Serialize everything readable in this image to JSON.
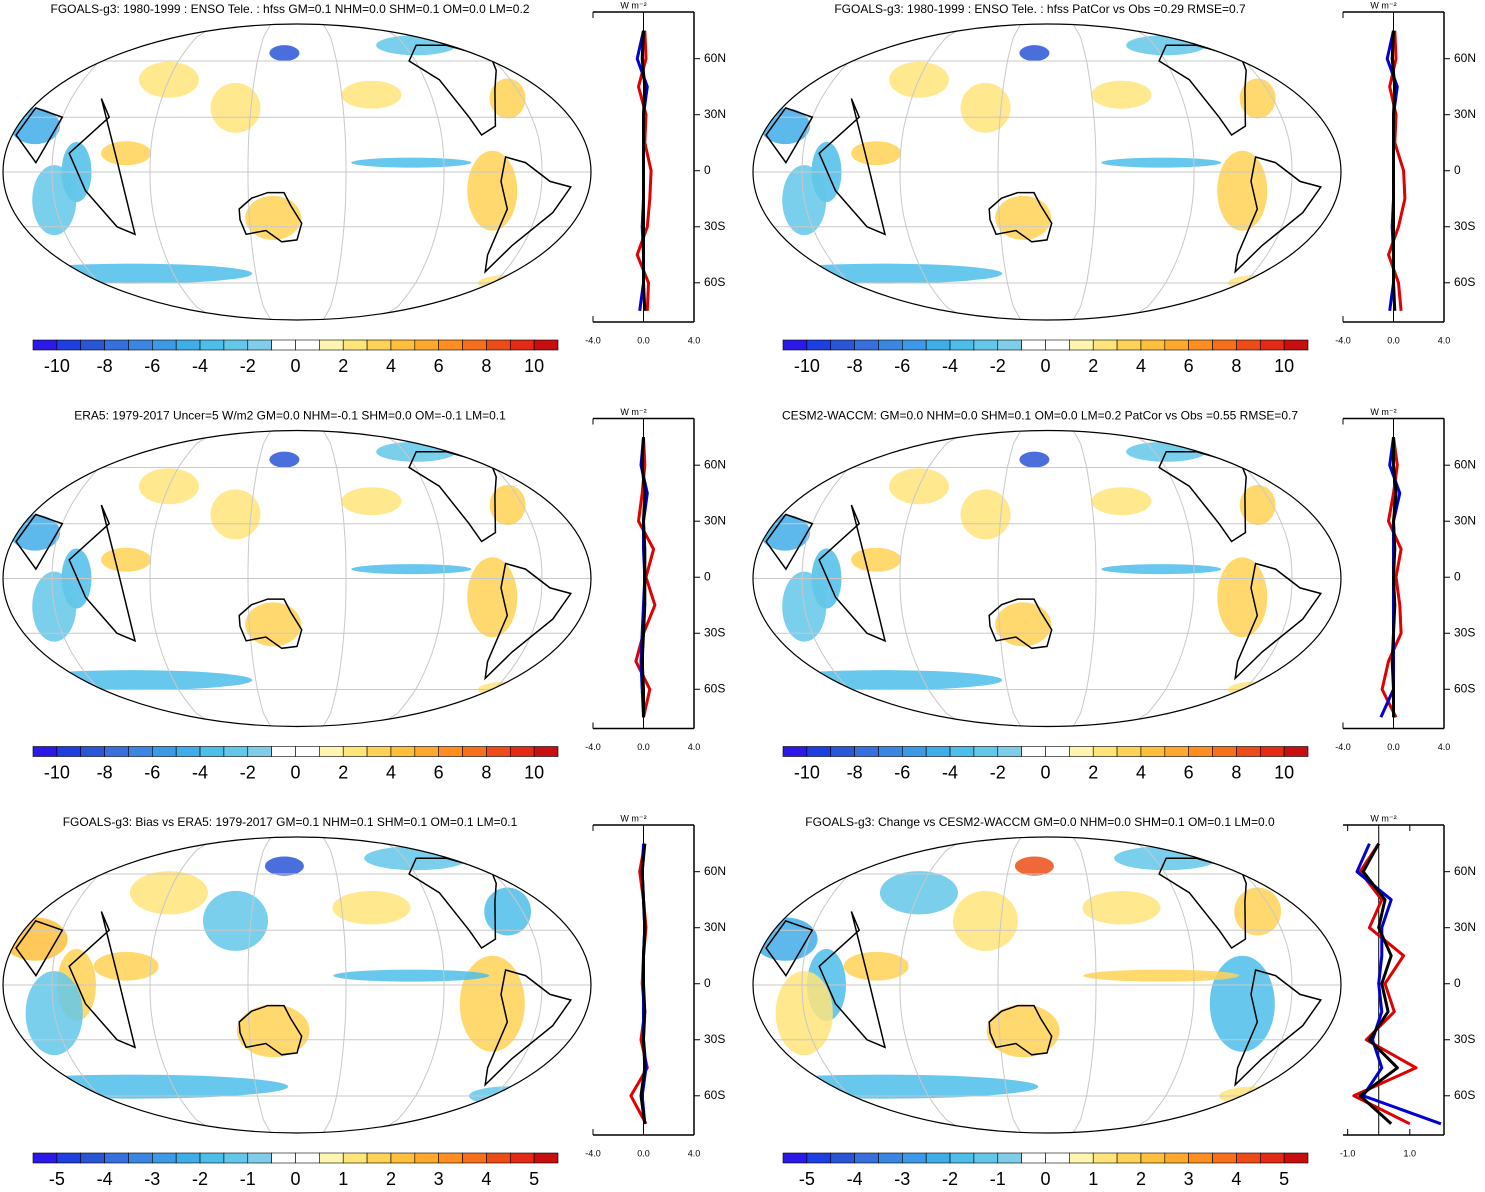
{
  "panels": [
    {
      "title": "FGOALS-g3: 1980-1999 : ENSO Tele. : hfss GM=0.1 NHM=0.0 SHM=0.1 OM=0.0 LM=0.2",
      "colorbar": {
        "lim": [
          -11,
          11
        ],
        "ticks": [
          -10,
          -8,
          -6,
          -4,
          -2,
          0,
          2,
          4,
          6,
          8,
          10
        ]
      },
      "profile": {
        "unit": "W m⁻²",
        "xlim": [
          -4,
          4
        ],
        "xticks": [
          {
            "value": -4,
            "label": "-4.0"
          },
          {
            "value": 0,
            "label": "0.0"
          },
          {
            "value": 4,
            "label": "4.0"
          }
        ],
        "series": [
          {
            "color": "#e00000",
            "values": [
              0.3,
              0.4,
              -0.5,
              0.3,
              0.5,
              0.6,
              0.1,
              0.2,
              -0.4,
              0.2,
              0.1
            ]
          },
          {
            "color": "#0000d0",
            "values": [
              -0.3,
              0.0,
              0.0,
              -0.1,
              0.0,
              0.0,
              0.0,
              0.0,
              0.3,
              -0.5,
              0.0
            ]
          },
          {
            "color": "#000000",
            "values": [
              0.1,
              0.0,
              0.0,
              0.0,
              0.0,
              0.0,
              0.0,
              0.0,
              0.1,
              -0.1,
              0.0
            ]
          }
        ]
      }
    },
    {
      "title": "FGOALS-g3: 1980-1999 : ENSO Tele. : hfss PatCor vs Obs =0.29 RMSE=0.7",
      "colorbar": {
        "lim": [
          -11,
          11
        ],
        "ticks": [
          -10,
          -8,
          -6,
          -4,
          -2,
          0,
          2,
          4,
          6,
          8,
          10
        ]
      },
      "profile": {
        "unit": "W m⁻²",
        "xlim": [
          -4,
          4
        ],
        "xticks": [
          {
            "value": -4,
            "label": "-4.0"
          },
          {
            "value": 0,
            "label": "0.0"
          },
          {
            "value": 4,
            "label": "4.0"
          }
        ],
        "series": [
          {
            "color": "#e00000",
            "values": [
              0.6,
              0.4,
              -0.4,
              0.4,
              0.9,
              0.8,
              0.1,
              0.2,
              -0.3,
              0.2,
              0.1
            ]
          },
          {
            "color": "#0000d0",
            "values": [
              -0.3,
              0.0,
              0.0,
              -0.1,
              0.0,
              0.0,
              0.0,
              0.0,
              0.3,
              -0.5,
              0.0
            ]
          },
          {
            "color": "#000000",
            "values": [
              0.1,
              0.0,
              0.0,
              0.0,
              0.0,
              0.0,
              0.0,
              0.0,
              0.1,
              -0.1,
              0.0
            ]
          }
        ]
      }
    },
    {
      "title": "ERA5: 1979-2017 Uncer=5 W/m2 GM=0.0 NHM=-0.1 SHM=0.0 OM=-0.1 LM=0.1",
      "colorbar": {
        "lim": [
          -11,
          11
        ],
        "ticks": [
          -10,
          -8,
          -6,
          -4,
          -2,
          0,
          2,
          4,
          6,
          8,
          10
        ]
      },
      "profile": {
        "unit": "W m⁻²",
        "xlim": [
          -4,
          4
        ],
        "xticks": [
          {
            "value": -4,
            "label": "-4.0"
          },
          {
            "value": 0,
            "label": "0.0"
          },
          {
            "value": 4,
            "label": "4.0"
          }
        ],
        "series": [
          {
            "color": "#e00000",
            "values": [
              0.0,
              0.5,
              -0.6,
              0.0,
              0.9,
              0.2,
              0.8,
              -0.4,
              -0.1,
              0.1,
              0.0
            ]
          },
          {
            "color": "#0000d0",
            "values": [
              0.0,
              -0.1,
              -0.2,
              -0.1,
              0.0,
              0.1,
              0.0,
              0.0,
              0.3,
              -0.2,
              0.0
            ]
          },
          {
            "color": "#000000",
            "values": [
              0.0,
              0.0,
              -0.1,
              0.0,
              0.1,
              0.1,
              0.1,
              0.0,
              0.1,
              -0.1,
              0.0
            ]
          }
        ]
      }
    },
    {
      "title": "CESM2-WACCM: GM=0.0 NHM=0.0 SHM=0.1 OM=0.0 LM=0.2 PatCor vs Obs =0.55 RMSE=0.7",
      "colorbar": {
        "lim": [
          -11,
          11
        ],
        "ticks": [
          -10,
          -8,
          -6,
          -4,
          -2,
          0,
          2,
          4,
          6,
          8,
          10
        ]
      },
      "profile": {
        "unit": "W m⁻²",
        "xlim": [
          -4,
          4
        ],
        "xticks": [
          {
            "value": -4,
            "label": "-4.0"
          },
          {
            "value": 0,
            "label": "0.0"
          },
          {
            "value": 4,
            "label": "4.0"
          }
        ],
        "series": [
          {
            "color": "#e00000",
            "values": [
              0.2,
              -0.9,
              -0.4,
              0.6,
              0.5,
              0.2,
              0.6,
              -0.4,
              0.0,
              0.3,
              0.0
            ]
          },
          {
            "color": "#0000d0",
            "values": [
              -1.0,
              0.0,
              0.0,
              0.0,
              0.0,
              0.0,
              0.0,
              0.0,
              0.5,
              -0.3,
              0.0
            ]
          },
          {
            "color": "#000000",
            "values": [
              0.0,
              0.0,
              -0.1,
              0.0,
              0.1,
              0.0,
              0.1,
              0.0,
              0.2,
              0.0,
              0.0
            ]
          }
        ]
      }
    },
    {
      "title": "FGOALS-g3: Bias vs ERA5: 1979-2017 GM=0.1 NHM=0.1 SHM=0.1 OM=0.1 LM=0.1",
      "colorbar": {
        "lim": [
          -5.5,
          5.5
        ],
        "ticks": [
          -5,
          -4,
          -3,
          -2,
          -1,
          0,
          1,
          2,
          3,
          4,
          5
        ]
      },
      "profile": {
        "unit": "W m⁻²",
        "xlim": [
          -4,
          4
        ],
        "xticks": [
          {
            "value": -4,
            "label": "-4.0"
          },
          {
            "value": 0,
            "label": "0.0"
          },
          {
            "value": 4,
            "label": "4.0"
          }
        ],
        "series": [
          {
            "color": "#e00000",
            "values": [
              0.2,
              -1.0,
              0.3,
              -0.2,
              0.1,
              -0.1,
              0.0,
              0.2,
              0.0,
              -0.3,
              0.1
            ]
          },
          {
            "color": "#0000d0",
            "values": [
              0.1,
              -0.1,
              0.2,
              0.0,
              0.0,
              0.0,
              0.0,
              0.1,
              0.0,
              -0.1,
              0.0
            ]
          },
          {
            "color": "#000000",
            "values": [
              0.1,
              -0.2,
              0.1,
              0.0,
              0.1,
              0.0,
              0.0,
              0.1,
              0.0,
              -0.1,
              0.1
            ]
          }
        ]
      }
    },
    {
      "title": "FGOALS-g3: Change vs CESM2-WACCM GM=0.0 NHM=0.0 SHM=0.1 OM=0.1 LM=0.0",
      "colorbar": {
        "lim": [
          -5.5,
          5.5
        ],
        "ticks": [
          -5,
          -4,
          -3,
          -2,
          -1,
          0,
          1,
          2,
          3,
          4,
          5
        ]
      },
      "profile": {
        "unit": "W m⁻²",
        "xlim": [
          -1.15,
          2.1
        ],
        "xticks": [
          {
            "value": -1,
            "label": "-1.0"
          },
          {
            "value": 1,
            "label": "1.0"
          }
        ],
        "series": [
          {
            "color": "#e00000",
            "values": [
              1.0,
              -0.8,
              1.2,
              -0.4,
              0.5,
              0.2,
              0.8,
              -0.3,
              0.1,
              -0.6,
              0.0
            ]
          },
          {
            "color": "#0000d0",
            "values": [
              2.0,
              -0.5,
              0.1,
              -0.2,
              0.1,
              0.0,
              0.1,
              0.1,
              0.4,
              -0.7,
              -0.3
            ]
          },
          {
            "color": "#000000",
            "values": [
              0.4,
              -0.6,
              0.6,
              -0.3,
              0.3,
              0.1,
              0.4,
              0.0,
              0.2,
              -0.5,
              0.0
            ]
          }
        ]
      }
    }
  ],
  "lats": [
    -75,
    -60,
    -45,
    -30,
    -15,
    0,
    15,
    30,
    45,
    60,
    75
  ],
  "lat_ticks": [
    {
      "value": 60,
      "label": "60N"
    },
    {
      "value": 30,
      "label": "30N"
    },
    {
      "value": 0,
      "label": "0"
    },
    {
      "value": -30,
      "label": "30S"
    },
    {
      "value": -60,
      "label": "60S"
    }
  ],
  "lat_lim": [
    -81,
    85
  ],
  "colors": [
    "#2b1ae6",
    "#1d3fe0",
    "#2a56d6",
    "#3770dc",
    "#3a86e0",
    "#3c99e6",
    "#41ade8",
    "#4ebde9",
    "#63c7ea",
    "#7fcde9",
    "#ffffff",
    "#ffffff",
    "#fff5b0",
    "#ffe47a",
    "#ffd255",
    "#ffbf3d",
    "#ffa82c",
    "#ff8e22",
    "#f6701c",
    "#ec4d18",
    "#e22a14",
    "#c80f10"
  ]
}
